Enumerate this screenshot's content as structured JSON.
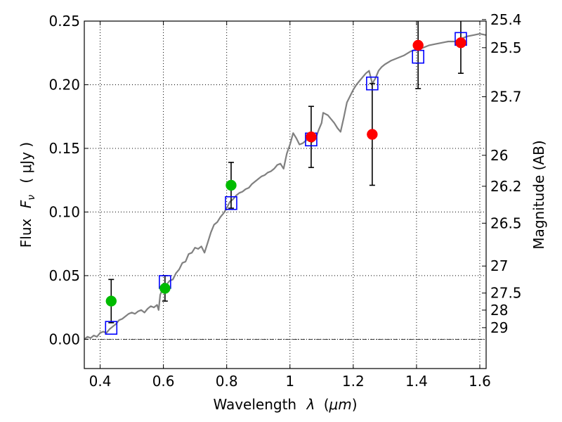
{
  "chart_data": {
    "type": "scatter",
    "xlabel_text": "Wavelength",
    "xlabel_symbol": "λ",
    "xlabel_unit_open": "(",
    "xlabel_unit": "μm",
    "xlabel_unit_close": ")",
    "ylabel_text": "Flux",
    "ylabel_symbol": "F",
    "ylabel_subscript": "ν",
    "ylabel_unit": "( μJy )",
    "y2label": "Magnitude (AB)",
    "xlim": [
      0.35,
      1.62
    ],
    "ylim": [
      -0.023,
      0.25
    ],
    "grid": true,
    "x_ticks": [
      {
        "value": 0.4,
        "label": "0.4"
      },
      {
        "value": 0.6,
        "label": "0.6"
      },
      {
        "value": 0.8,
        "label": "0.8"
      },
      {
        "value": 1.0,
        "label": "1"
      },
      {
        "value": 1.2,
        "label": "1.2"
      },
      {
        "value": 1.4,
        "label": "1.4"
      },
      {
        "value": 1.6,
        "label": "1.6"
      }
    ],
    "y_ticks": [
      {
        "value": 0.0,
        "label": "0.00"
      },
      {
        "value": 0.05,
        "label": "0.05"
      },
      {
        "value": 0.1,
        "label": "0.10"
      },
      {
        "value": 0.15,
        "label": "0.15"
      },
      {
        "value": 0.2,
        "label": "0.20"
      },
      {
        "value": 0.25,
        "label": "0.25"
      }
    ],
    "y2_ticks": [
      {
        "mag": 25.4,
        "label": "25.4"
      },
      {
        "mag": 25.5,
        "label": "25.5"
      },
      {
        "mag": 25.7,
        "label": "25.7"
      },
      {
        "mag": 26,
        "label": "26"
      },
      {
        "mag": 26.2,
        "label": "26.2"
      },
      {
        "mag": 26.5,
        "label": "26.5"
      },
      {
        "mag": 27,
        "label": "27"
      },
      {
        "mag": 27.5,
        "label": "27.5"
      },
      {
        "mag": 28,
        "label": "28"
      },
      {
        "mag": 29,
        "label": "29"
      }
    ],
    "zero_line": 0.0,
    "model_spectrum": {
      "name": "model SED",
      "color": "#808080",
      "points": [
        [
          0.35,
          0.0
        ],
        [
          0.36,
          0.002
        ],
        [
          0.37,
          0.001
        ],
        [
          0.38,
          0.003
        ],
        [
          0.39,
          0.002
        ],
        [
          0.4,
          0.005
        ],
        [
          0.41,
          0.006
        ],
        [
          0.42,
          0.005
        ],
        [
          0.43,
          0.008
        ],
        [
          0.44,
          0.01
        ],
        [
          0.45,
          0.012
        ],
        [
          0.46,
          0.015
        ],
        [
          0.47,
          0.016
        ],
        [
          0.48,
          0.018
        ],
        [
          0.49,
          0.02
        ],
        [
          0.5,
          0.021
        ],
        [
          0.51,
          0.02
        ],
        [
          0.52,
          0.022
        ],
        [
          0.53,
          0.023
        ],
        [
          0.54,
          0.021
        ],
        [
          0.55,
          0.024
        ],
        [
          0.56,
          0.026
        ],
        [
          0.57,
          0.025
        ],
        [
          0.58,
          0.027
        ],
        [
          0.585,
          0.023
        ],
        [
          0.59,
          0.035
        ],
        [
          0.6,
          0.041
        ],
        [
          0.61,
          0.043
        ],
        [
          0.62,
          0.046
        ],
        [
          0.63,
          0.047
        ],
        [
          0.64,
          0.052
        ],
        [
          0.65,
          0.055
        ],
        [
          0.66,
          0.06
        ],
        [
          0.67,
          0.061
        ],
        [
          0.68,
          0.067
        ],
        [
          0.69,
          0.068
        ],
        [
          0.7,
          0.072
        ],
        [
          0.71,
          0.071
        ],
        [
          0.72,
          0.073
        ],
        [
          0.73,
          0.068
        ],
        [
          0.74,
          0.076
        ],
        [
          0.75,
          0.084
        ],
        [
          0.76,
          0.09
        ],
        [
          0.77,
          0.092
        ],
        [
          0.78,
          0.096
        ],
        [
          0.79,
          0.099
        ],
        [
          0.8,
          0.103
        ],
        [
          0.81,
          0.108
        ],
        [
          0.82,
          0.11
        ],
        [
          0.83,
          0.113
        ],
        [
          0.84,
          0.115
        ],
        [
          0.85,
          0.116
        ],
        [
          0.86,
          0.118
        ],
        [
          0.87,
          0.119
        ],
        [
          0.88,
          0.122
        ],
        [
          0.89,
          0.124
        ],
        [
          0.9,
          0.126
        ],
        [
          0.91,
          0.128
        ],
        [
          0.92,
          0.129
        ],
        [
          0.93,
          0.131
        ],
        [
          0.94,
          0.132
        ],
        [
          0.95,
          0.134
        ],
        [
          0.96,
          0.137
        ],
        [
          0.97,
          0.138
        ],
        [
          0.98,
          0.134
        ],
        [
          0.985,
          0.14
        ],
        [
          0.99,
          0.146
        ],
        [
          1.0,
          0.153
        ],
        [
          1.01,
          0.162
        ],
        [
          1.02,
          0.158
        ],
        [
          1.03,
          0.153
        ],
        [
          1.04,
          0.154
        ],
        [
          1.05,
          0.156
        ],
        [
          1.06,
          0.158
        ],
        [
          1.07,
          0.155
        ],
        [
          1.08,
          0.157
        ],
        [
          1.09,
          0.164
        ],
        [
          1.1,
          0.17
        ],
        [
          1.105,
          0.178
        ],
        [
          1.12,
          0.176
        ],
        [
          1.14,
          0.17
        ],
        [
          1.15,
          0.166
        ],
        [
          1.16,
          0.163
        ],
        [
          1.17,
          0.174
        ],
        [
          1.18,
          0.186
        ],
        [
          1.19,
          0.191
        ],
        [
          1.2,
          0.196
        ],
        [
          1.21,
          0.2
        ],
        [
          1.22,
          0.203
        ],
        [
          1.23,
          0.206
        ],
        [
          1.24,
          0.209
        ],
        [
          1.25,
          0.211
        ],
        [
          1.26,
          0.201
        ],
        [
          1.27,
          0.205
        ],
        [
          1.28,
          0.211
        ],
        [
          1.29,
          0.214
        ],
        [
          1.3,
          0.216
        ],
        [
          1.32,
          0.219
        ],
        [
          1.34,
          0.221
        ],
        [
          1.36,
          0.223
        ],
        [
          1.38,
          0.226
        ],
        [
          1.4,
          0.228
        ],
        [
          1.42,
          0.229
        ],
        [
          1.44,
          0.231
        ],
        [
          1.46,
          0.232
        ],
        [
          1.48,
          0.233
        ],
        [
          1.5,
          0.234
        ],
        [
          1.52,
          0.234
        ],
        [
          1.54,
          0.236
        ],
        [
          1.56,
          0.238
        ],
        [
          1.58,
          0.239
        ],
        [
          1.6,
          0.24
        ],
        [
          1.62,
          0.239
        ]
      ]
    },
    "series": [
      {
        "name": "model photometry",
        "marker": "square",
        "color": "#0000ff",
        "x": [
          0.435,
          0.605,
          0.814,
          1.067,
          1.26,
          1.405,
          1.54
        ],
        "y": [
          0.009,
          0.045,
          0.107,
          0.157,
          0.201,
          0.222,
          0.236
        ]
      },
      {
        "name": "optical detections",
        "marker": "circle",
        "color": "#00bb00",
        "x": [
          0.435,
          0.605,
          0.814
        ],
        "y": [
          0.03,
          0.04,
          0.121
        ],
        "yerr": [
          0.017,
          0.01,
          0.018
        ]
      },
      {
        "name": "near-IR detections",
        "marker": "circle",
        "color": "#ff0000",
        "x": [
          1.067,
          1.26,
          1.405,
          1.54
        ],
        "y": [
          0.159,
          0.161,
          0.231,
          0.233
        ],
        "yerr": [
          0.024,
          0.04,
          0.034,
          0.024
        ]
      }
    ]
  }
}
